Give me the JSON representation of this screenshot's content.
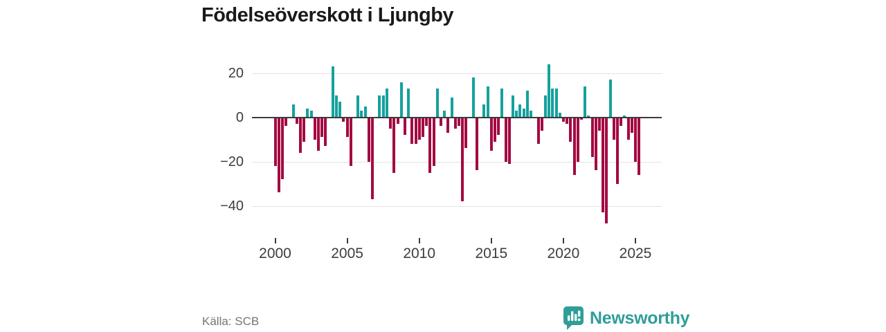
{
  "header": {
    "title": "Födelseöverskott i Ljungby"
  },
  "footer": {
    "source": "Källa: SCB",
    "logo_text": "Newsworthy"
  },
  "colors": {
    "positive": "#15a19e",
    "negative": "#a30a42",
    "gridline": "#e2e2e2",
    "axis": "#3b3b3b",
    "logo_teal": "#2f9e99"
  },
  "chart_data": {
    "type": "bar",
    "title": "Födelseöverskott i Ljungby",
    "xlabel": "",
    "ylabel": "",
    "source": "Källa: SCB",
    "frequency": "quarterly",
    "start_year": 2000,
    "start_quarter": 1,
    "x_tick_years": [
      2000,
      2005,
      2010,
      2015,
      2020,
      2025
    ],
    "y_ticks": [
      20,
      0,
      -20,
      -40
    ],
    "ylim": [
      -50,
      26
    ],
    "grid": true,
    "legend": "none",
    "values": [
      -22,
      -34,
      -28,
      -4,
      0,
      6,
      -3,
      -16,
      -11,
      4,
      3,
      -10,
      -15,
      -9,
      -13,
      0,
      23,
      10,
      7,
      -2,
      -9,
      -22,
      0,
      10,
      3,
      5,
      -20,
      -37,
      0,
      10,
      10,
      13,
      -5,
      -25,
      -3,
      16,
      -8,
      13,
      -12,
      -12,
      -10,
      -9,
      -4,
      -25,
      -22,
      13,
      -4,
      3,
      -7,
      9,
      -5,
      -4,
      -38,
      -14,
      0,
      18,
      -24,
      0,
      6,
      14,
      -15,
      -11,
      -8,
      13,
      -20,
      -21,
      10,
      3,
      6,
      4,
      12,
      3,
      0,
      -12,
      -6,
      10,
      24,
      13,
      13,
      2,
      -2,
      -3,
      -11,
      -26,
      -20,
      -1,
      14,
      1,
      -18,
      -24,
      -6,
      -43,
      -48,
      17,
      -10,
      -30,
      -4,
      1,
      -10,
      -7,
      -20,
      -26
    ]
  }
}
